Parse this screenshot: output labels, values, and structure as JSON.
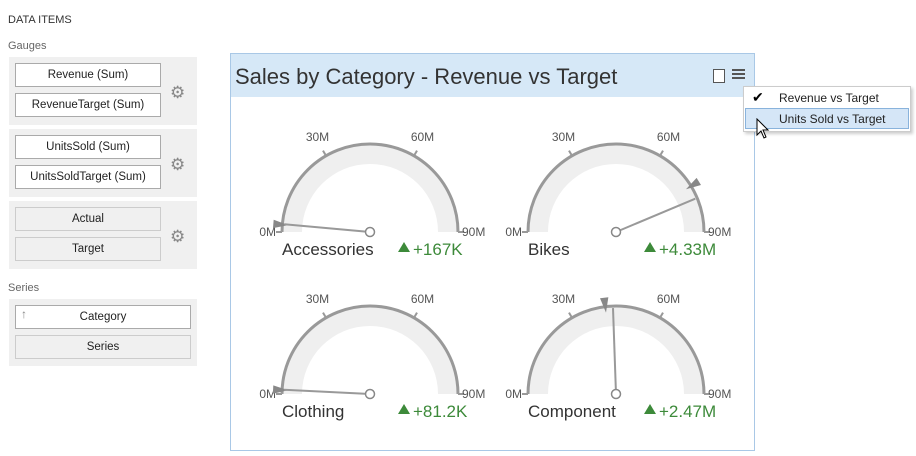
{
  "left_panel": {
    "title": "DATA ITEMS",
    "sections": [
      {
        "label": "Gauges",
        "groups": [
          [
            "Revenue (Sum)",
            "RevenueTarget (Sum)"
          ],
          [
            "UnitsSold (Sum)",
            "UnitsSoldTarget (Sum)"
          ],
          [
            "Actual",
            "Target"
          ]
        ]
      },
      {
        "label": "Series",
        "groups": [
          [
            "Category",
            "Series"
          ]
        ]
      }
    ]
  },
  "dashboard": {
    "title": "Sales by Category - Revenue vs Target",
    "menu": [
      "Revenue vs Target",
      "Units Sold vs Target"
    ],
    "scale": {
      "min": 0,
      "max": 90,
      "ticks": [
        {
          "value": 0,
          "label": "0M"
        },
        {
          "value": 30,
          "label": "30M"
        },
        {
          "value": 60,
          "label": "60M"
        },
        {
          "value": 90,
          "label": "90M"
        }
      ]
    },
    "gauges": [
      {
        "name": "Accessories",
        "value": 2.6,
        "target": 2.4,
        "delta": "+167K"
      },
      {
        "name": "Bikes",
        "value": 78.6,
        "target": 74.3,
        "delta": "+4.33M"
      },
      {
        "name": "Clothing",
        "value": 1.4,
        "target": 1.3,
        "delta": "+81.2K"
      },
      {
        "name": "Component",
        "value": 44,
        "target": 41.5,
        "delta": "+2.47M"
      }
    ]
  }
}
